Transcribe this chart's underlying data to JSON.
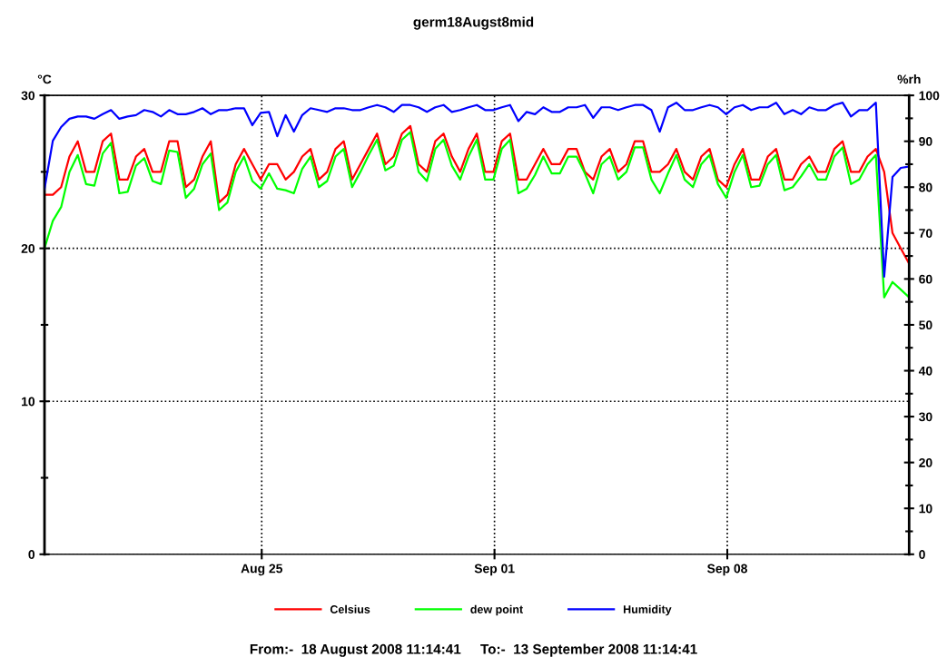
{
  "chart_data": {
    "type": "line",
    "title": "germ18Augst8mid",
    "ylabel": "°C",
    "y2label": "%rh",
    "annotations": [
      "From:-  18 August 2008 11:14:41     To:-  13 September 2008 11:14:41"
    ],
    "x": [
      "2008-08-18T11:14",
      "2008-08-18T17:14",
      "2008-08-18T23:14",
      "2008-08-19T05:14",
      "2008-08-19T11:14",
      "2008-08-19T17:14",
      "2008-08-19T23:14",
      "2008-08-20T05:14",
      "2008-08-20T11:14",
      "2008-08-20T17:14",
      "2008-08-20T23:14",
      "2008-08-21T05:14",
      "2008-08-21T11:14",
      "2008-08-21T17:14",
      "2008-08-21T23:14",
      "2008-08-22T05:14",
      "2008-08-22T11:14",
      "2008-08-22T17:14",
      "2008-08-22T23:14",
      "2008-08-23T05:14",
      "2008-08-23T11:14",
      "2008-08-23T17:14",
      "2008-08-23T23:14",
      "2008-08-24T05:14",
      "2008-08-24T11:14",
      "2008-08-24T17:14",
      "2008-08-24T23:14",
      "2008-08-25T05:14",
      "2008-08-25T11:14",
      "2008-08-25T17:14",
      "2008-08-25T23:14",
      "2008-08-26T05:14",
      "2008-08-26T11:14",
      "2008-08-26T17:14",
      "2008-08-26T23:14",
      "2008-08-27T05:14",
      "2008-08-27T11:14",
      "2008-08-27T17:14",
      "2008-08-27T23:14",
      "2008-08-28T05:14",
      "2008-08-28T11:14",
      "2008-08-28T17:14",
      "2008-08-28T23:14",
      "2008-08-29T05:14",
      "2008-08-29T11:14",
      "2008-08-29T17:14",
      "2008-08-29T23:14",
      "2008-08-30T05:14",
      "2008-08-30T11:14",
      "2008-08-30T17:14",
      "2008-08-30T23:14",
      "2008-08-31T05:14",
      "2008-08-31T11:14",
      "2008-08-31T17:14",
      "2008-08-31T23:14",
      "2008-09-01T05:14",
      "2008-09-01T11:14",
      "2008-09-01T17:14",
      "2008-09-01T23:14",
      "2008-09-02T05:14",
      "2008-09-02T11:14",
      "2008-09-02T17:14",
      "2008-09-02T23:14",
      "2008-09-03T05:14",
      "2008-09-03T11:14",
      "2008-09-03T17:14",
      "2008-09-03T23:14",
      "2008-09-04T05:14",
      "2008-09-04T11:14",
      "2008-09-04T17:14",
      "2008-09-04T23:14",
      "2008-09-05T05:14",
      "2008-09-05T11:14",
      "2008-09-05T17:14",
      "2008-09-05T23:14",
      "2008-09-06T05:14",
      "2008-09-06T11:14",
      "2008-09-06T17:14",
      "2008-09-06T23:14",
      "2008-09-07T05:14",
      "2008-09-07T11:14",
      "2008-09-07T17:14",
      "2008-09-07T23:14",
      "2008-09-08T05:14",
      "2008-09-08T11:14",
      "2008-09-08T17:14",
      "2008-09-08T23:14",
      "2008-09-09T05:14",
      "2008-09-09T11:14",
      "2008-09-09T17:14",
      "2008-09-09T23:14",
      "2008-09-10T05:14",
      "2008-09-10T11:14",
      "2008-09-10T17:14",
      "2008-09-10T23:14",
      "2008-09-11T05:14",
      "2008-09-11T11:14",
      "2008-09-11T17:14",
      "2008-09-11T23:14",
      "2008-09-12T05:14",
      "2008-09-12T11:14",
      "2008-09-12T17:14",
      "2008-09-12T23:14",
      "2008-09-13T05:14",
      "2008-09-13T11:14"
    ],
    "series": [
      {
        "name": "Celsius",
        "color": "#ff0000",
        "values": [
          23.5,
          23.5,
          24,
          26,
          27,
          25,
          25,
          27,
          27.5,
          24.5,
          24.5,
          26,
          26.5,
          25,
          25,
          27,
          27,
          24,
          24.5,
          26,
          27,
          23,
          23.5,
          25.5,
          26.5,
          25.5,
          24.5,
          25.5,
          25.5,
          24.5,
          25,
          26,
          26.5,
          24.5,
          25,
          26.5,
          27,
          24.5,
          25.5,
          26.5,
          27.5,
          25.5,
          26,
          27.5,
          28,
          25.5,
          25,
          27,
          27.5,
          26,
          25,
          26.5,
          27.5,
          25,
          25,
          27,
          27.5,
          24.5,
          24.5,
          25.5,
          26.5,
          25.5,
          25.5,
          26.5,
          26.5,
          25,
          24.5,
          26,
          26.5,
          25,
          25.5,
          27,
          27,
          25,
          25,
          25.5,
          26.5,
          25,
          24.5,
          26,
          26.5,
          24.5,
          24,
          25.5,
          26.5,
          24.5,
          24.5,
          26,
          26.5,
          24.5,
          24.5,
          25.5,
          26,
          25,
          25,
          26.5,
          27,
          25,
          25,
          26,
          26.5,
          25,
          21,
          20,
          19
        ]
      },
      {
        "name": "dew point",
        "color": "#00ff00",
        "values": [
          20,
          21.8,
          22.7,
          25,
          26.1,
          24.2,
          24.1,
          26.2,
          26.9,
          23.6,
          23.7,
          25.4,
          25.9,
          24.4,
          24.2,
          26.4,
          26.3,
          23.3,
          23.9,
          25.5,
          26.2,
          22.5,
          23,
          25,
          26,
          24.4,
          23.9,
          24.9,
          23.9,
          23.8,
          23.6,
          25.2,
          26,
          24,
          24.4,
          26,
          26.5,
          24,
          25,
          26.1,
          27.1,
          25.1,
          25.4,
          27.1,
          27.6,
          25,
          24.4,
          26.5,
          27.1,
          25.4,
          24.5,
          26,
          27.1,
          24.5,
          24.5,
          26.5,
          27.1,
          23.6,
          23.9,
          24.8,
          26,
          24.9,
          24.9,
          26,
          26,
          24.9,
          23.6,
          25.5,
          26,
          24.5,
          25,
          26.6,
          26.6,
          24.5,
          23.6,
          24.9,
          26.1,
          24.5,
          24,
          25.5,
          26.1,
          24.2,
          23.3,
          25,
          26.1,
          24,
          24.1,
          25.5,
          26.1,
          23.8,
          24,
          24.7,
          25.5,
          24.5,
          24.5,
          26,
          26.6,
          24.2,
          24.5,
          25.5,
          26.1,
          16.8,
          17.8,
          17.3,
          16.8
        ]
      },
      {
        "name": "Humidity",
        "color": "#0000ff",
        "axis": "y2",
        "values": [
          79.6,
          90.1,
          93.1,
          94.9,
          95.4,
          95.4,
          94.9,
          95.9,
          96.8,
          94.9,
          95.4,
          95.7,
          96.8,
          96.4,
          95.4,
          96.8,
          95.9,
          95.9,
          96.4,
          97.2,
          95.9,
          96.8,
          96.8,
          97.2,
          97.2,
          93.5,
          96.2,
          96.4,
          91.1,
          95.7,
          92.1,
          95.7,
          97.2,
          96.8,
          96.4,
          97.2,
          97.2,
          96.8,
          96.8,
          97.4,
          97.9,
          97.4,
          96.4,
          97.9,
          97.9,
          97.4,
          96.4,
          97.4,
          97.9,
          96.4,
          96.8,
          97.4,
          97.9,
          96.8,
          96.8,
          97.4,
          97.9,
          94.4,
          96.4,
          95.9,
          97.4,
          96.4,
          96.4,
          97.4,
          97.4,
          97.9,
          95.1,
          97.4,
          97.4,
          96.8,
          97.4,
          97.9,
          97.9,
          96.8,
          92.1,
          97.4,
          98.4,
          96.8,
          96.8,
          97.4,
          97.9,
          97.4,
          95.9,
          97.4,
          97.9,
          96.8,
          97.4,
          97.4,
          98.4,
          95.9,
          96.8,
          95.9,
          97.4,
          96.8,
          96.8,
          97.9,
          98.4,
          95.4,
          96.8,
          96.8,
          98.4,
          60.5,
          82.2,
          84.2,
          84.5
        ]
      }
    ],
    "xlim": [
      "2008-08-18T11:14",
      "2008-09-13T11:14"
    ],
    "xticks": [
      {
        "value": "2008-08-25",
        "label": "Aug 25"
      },
      {
        "value": "2008-09-01",
        "label": "Sep 01"
      },
      {
        "value": "2008-09-08",
        "label": "Sep 08"
      }
    ],
    "ylim": [
      0,
      30
    ],
    "yticks": [
      0,
      {
        "value": 5,
        "label": null
      },
      10,
      {
        "value": 15,
        "label": null
      },
      20,
      {
        "value": 25,
        "label": null
      },
      30
    ],
    "y2lim": [
      0,
      100
    ],
    "y2ticks": [
      0,
      {
        "value": 5,
        "label": null
      },
      10,
      {
        "value": 15,
        "label": null
      },
      20,
      {
        "value": 25,
        "label": null
      },
      30,
      {
        "value": 35,
        "label": null
      },
      40,
      {
        "value": 45,
        "label": null
      },
      50,
      {
        "value": 55,
        "label": null
      },
      60,
      {
        "value": 65,
        "label": null
      },
      70,
      {
        "value": 75,
        "label": null
      },
      80,
      {
        "value": 85,
        "label": null
      },
      90,
      {
        "value": 95,
        "label": null
      },
      100
    ],
    "grid": true,
    "legend": "bottom",
    "line_style": "solid"
  }
}
